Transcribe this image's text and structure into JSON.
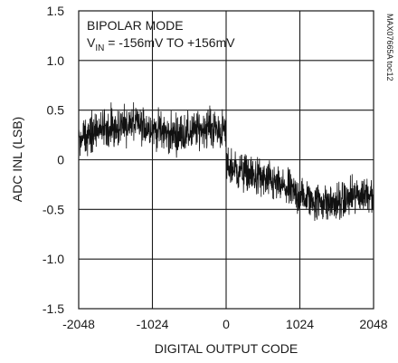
{
  "chart_data": {
    "type": "line",
    "xlabel": "DIGITAL OUTPUT CODE",
    "ylabel": "ADC INL (LSB)",
    "xlim": [
      -2048,
      2048
    ],
    "ylim": [
      -1.5,
      1.5
    ],
    "x_ticks": [
      -2048,
      -1024,
      0,
      1024,
      2048
    ],
    "x_tick_labels": [
      "-2048",
      "-1024",
      "0",
      "1024",
      "2048"
    ],
    "y_ticks": [
      -1.5,
      -1.0,
      -0.5,
      0,
      0.5,
      1.0,
      1.5
    ],
    "y_tick_labels": [
      "-1.5",
      "-1.0",
      "-0.5",
      "0",
      "0.5",
      "1.0",
      "1.5"
    ],
    "grid": true,
    "annotations": {
      "mode": "BIPOLAR MODE",
      "vin_prefix": "V",
      "vin_sub": "IN",
      "vin_suffix": " = -156mV TO +156mV"
    },
    "figure_ref": "MAX07665A toc12",
    "series": [
      {
        "x": [
          -2048,
          -1792,
          -1536,
          -1280,
          -1024,
          -768,
          -512,
          -256,
          -1,
          0,
          256,
          512,
          768,
          1024,
          1280,
          1536,
          1792,
          2048
        ],
        "values": [
          0.22,
          0.28,
          0.33,
          0.36,
          0.32,
          0.25,
          0.27,
          0.33,
          0.28,
          -0.06,
          -0.13,
          -0.2,
          -0.27,
          -0.37,
          -0.42,
          -0.44,
          -0.37,
          -0.32
        ],
        "noise_band": 0.22,
        "color": "#111111"
      }
    ]
  }
}
